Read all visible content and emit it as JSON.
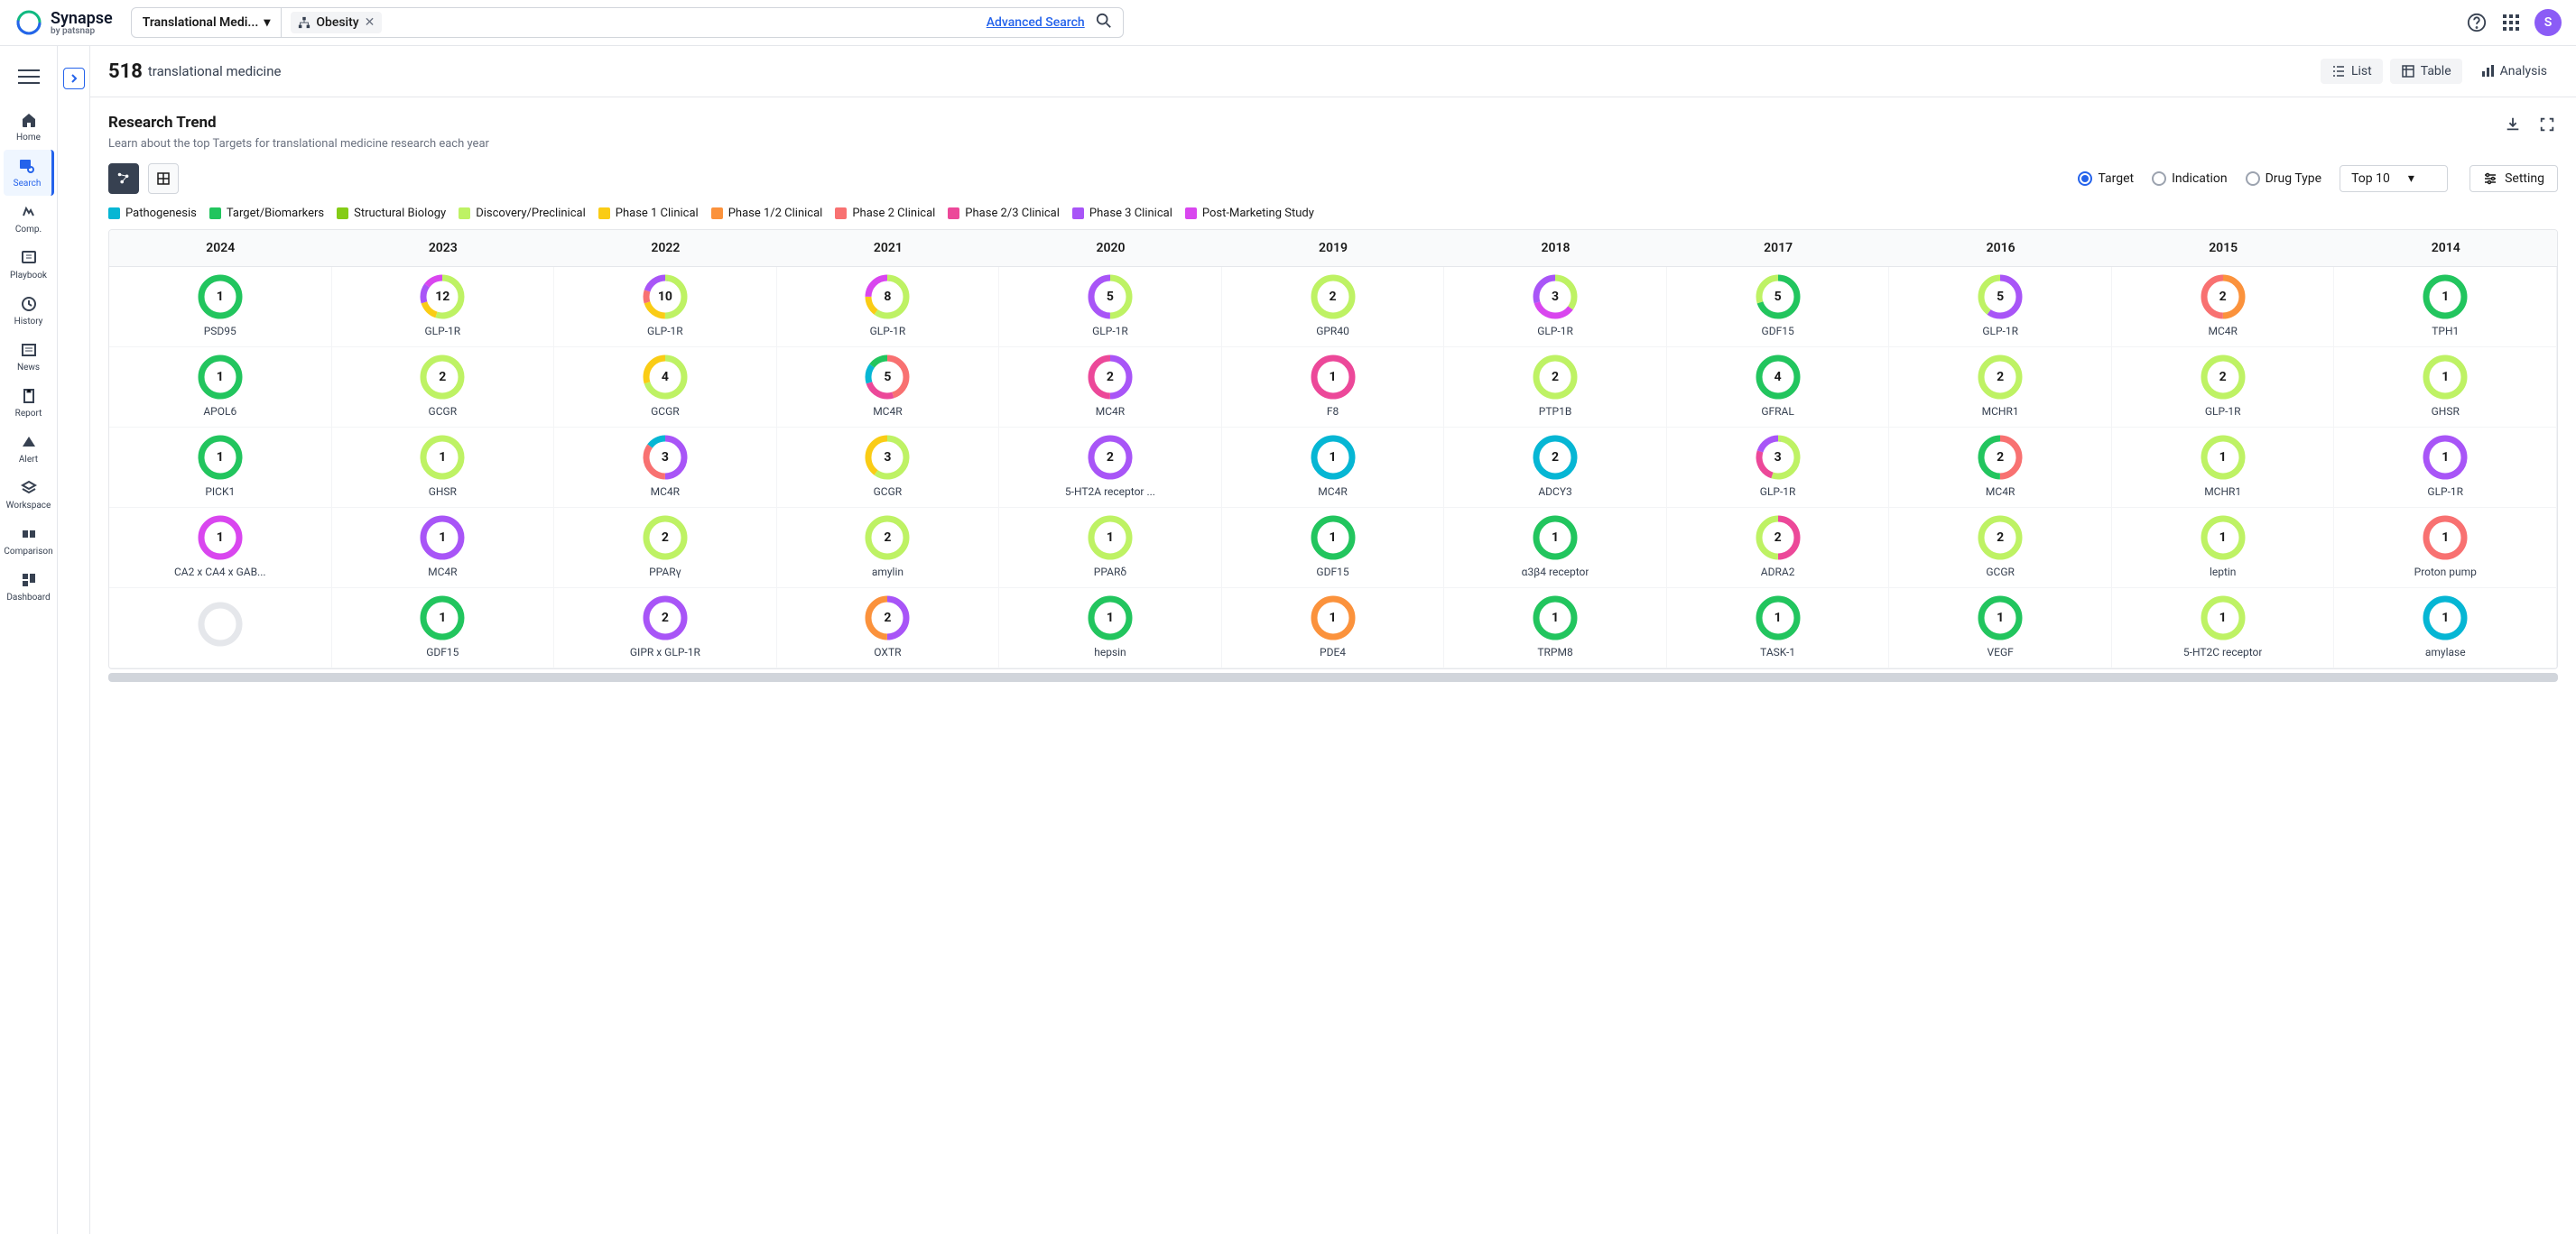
{
  "brand": {
    "name": "Synapse",
    "by": "by patsnap"
  },
  "search": {
    "dropdown": "Translational Medi...",
    "chip_label": "Obesity",
    "advanced": "Advanced Search"
  },
  "avatar_letter": "S",
  "sidebar": {
    "items": [
      {
        "label": "Home"
      },
      {
        "label": "Search",
        "active": true
      },
      {
        "label": "Comp."
      },
      {
        "label": "Playbook"
      },
      {
        "label": "History"
      },
      {
        "label": "News"
      },
      {
        "label": "Report"
      },
      {
        "label": "Alert"
      },
      {
        "label": "Workspace"
      },
      {
        "label": "Comparison"
      },
      {
        "label": "Dashboard"
      }
    ]
  },
  "results": {
    "count": "518",
    "label": "translational medicine"
  },
  "view_tabs": {
    "list": "List",
    "table": "Table",
    "analysis": "Analysis"
  },
  "panel": {
    "title": "Research Trend",
    "subtitle": "Learn about the top Targets for translational medicine research each year"
  },
  "radios": {
    "target": "Target",
    "indication": "Indication",
    "drug_type": "Drug Type"
  },
  "top_select": "Top 10",
  "setting_btn": "Setting",
  "legend": [
    {
      "label": "Pathogenesis",
      "color": "#06b6d4"
    },
    {
      "label": "Target/Biomarkers",
      "color": "#22c55e"
    },
    {
      "label": "Structural Biology",
      "color": "#84cc16"
    },
    {
      "label": "Discovery/Preclinical",
      "color": "#bef264"
    },
    {
      "label": "Phase 1 Clinical",
      "color": "#facc15"
    },
    {
      "label": "Phase 1/2 Clinical",
      "color": "#fb923c"
    },
    {
      "label": "Phase 2 Clinical",
      "color": "#f87171"
    },
    {
      "label": "Phase 2/3 Clinical",
      "color": "#ec4899"
    },
    {
      "label": "Phase 3 Clinical",
      "color": "#a855f7"
    },
    {
      "label": "Post-Marketing Study",
      "color": "#d946ef"
    }
  ],
  "years": [
    "2024",
    "2023",
    "2022",
    "2021",
    "2020",
    "2019",
    "2018",
    "2017",
    "2016",
    "2015",
    "2014"
  ],
  "rows": [
    [
      {
        "value": "1",
        "label": "PSD95",
        "segments": [
          [
            "#22c55e",
            100
          ]
        ]
      },
      {
        "value": "12",
        "label": "GLP-1R",
        "segments": [
          [
            "#bef264",
            55
          ],
          [
            "#facc15",
            15
          ],
          [
            "#a855f7",
            15
          ],
          [
            "#d946ef",
            15
          ]
        ]
      },
      {
        "value": "10",
        "label": "GLP-1R",
        "segments": [
          [
            "#bef264",
            50
          ],
          [
            "#facc15",
            20
          ],
          [
            "#f87171",
            10
          ],
          [
            "#a855f7",
            20
          ]
        ]
      },
      {
        "value": "8",
        "label": "GLP-1R",
        "segments": [
          [
            "#bef264",
            60
          ],
          [
            "#facc15",
            15
          ],
          [
            "#d946ef",
            25
          ]
        ]
      },
      {
        "value": "5",
        "label": "GLP-1R",
        "segments": [
          [
            "#bef264",
            50
          ],
          [
            "#a855f7",
            50
          ]
        ]
      },
      {
        "value": "2",
        "label": "GPR40",
        "segments": [
          [
            "#bef264",
            100
          ]
        ]
      },
      {
        "value": "3",
        "label": "GLP-1R",
        "segments": [
          [
            "#bef264",
            35
          ],
          [
            "#d946ef",
            35
          ],
          [
            "#a855f7",
            30
          ]
        ]
      },
      {
        "value": "5",
        "label": "GDF15",
        "segments": [
          [
            "#22c55e",
            70
          ],
          [
            "#bef264",
            30
          ]
        ]
      },
      {
        "value": "5",
        "label": "GLP-1R",
        "segments": [
          [
            "#a855f7",
            60
          ],
          [
            "#bef264",
            40
          ]
        ]
      },
      {
        "value": "2",
        "label": "MC4R",
        "segments": [
          [
            "#fb923c",
            50
          ],
          [
            "#f87171",
            50
          ]
        ]
      },
      {
        "value": "1",
        "label": "TPH1",
        "segments": [
          [
            "#22c55e",
            100
          ]
        ]
      }
    ],
    [
      {
        "value": "1",
        "label": "APOL6",
        "segments": [
          [
            "#22c55e",
            100
          ]
        ]
      },
      {
        "value": "2",
        "label": "GCGR",
        "segments": [
          [
            "#bef264",
            100
          ]
        ]
      },
      {
        "value": "4",
        "label": "GCGR",
        "segments": [
          [
            "#bef264",
            70
          ],
          [
            "#facc15",
            30
          ]
        ]
      },
      {
        "value": "5",
        "label": "MC4R",
        "segments": [
          [
            "#f87171",
            45
          ],
          [
            "#ec4899",
            25
          ],
          [
            "#06b6d4",
            15
          ],
          [
            "#22c55e",
            15
          ]
        ]
      },
      {
        "value": "2",
        "label": "MC4R",
        "segments": [
          [
            "#a855f7",
            50
          ],
          [
            "#ec4899",
            50
          ]
        ]
      },
      {
        "value": "1",
        "label": "F8",
        "segments": [
          [
            "#ec4899",
            100
          ]
        ]
      },
      {
        "value": "2",
        "label": "PTP1B",
        "segments": [
          [
            "#bef264",
            100
          ]
        ]
      },
      {
        "value": "4",
        "label": "GFRAL",
        "segments": [
          [
            "#22c55e",
            100
          ]
        ]
      },
      {
        "value": "2",
        "label": "MCHR1",
        "segments": [
          [
            "#bef264",
            100
          ]
        ]
      },
      {
        "value": "2",
        "label": "GLP-1R",
        "segments": [
          [
            "#bef264",
            100
          ]
        ]
      },
      {
        "value": "1",
        "label": "GHSR",
        "segments": [
          [
            "#bef264",
            100
          ]
        ]
      }
    ],
    [
      {
        "value": "1",
        "label": "PICK1",
        "segments": [
          [
            "#22c55e",
            100
          ]
        ]
      },
      {
        "value": "1",
        "label": "GHSR",
        "segments": [
          [
            "#bef264",
            100
          ]
        ]
      },
      {
        "value": "3",
        "label": "MC4R",
        "segments": [
          [
            "#a855f7",
            50
          ],
          [
            "#f87171",
            35
          ],
          [
            "#06b6d4",
            15
          ]
        ]
      },
      {
        "value": "3",
        "label": "GCGR",
        "segments": [
          [
            "#bef264",
            60
          ],
          [
            "#facc15",
            40
          ]
        ]
      },
      {
        "value": "2",
        "label": "5-HT2A receptor ...",
        "segments": [
          [
            "#a855f7",
            100
          ]
        ]
      },
      {
        "value": "1",
        "label": "MC4R",
        "segments": [
          [
            "#06b6d4",
            100
          ]
        ]
      },
      {
        "value": "2",
        "label": "ADCY3",
        "segments": [
          [
            "#06b6d4",
            100
          ]
        ]
      },
      {
        "value": "3",
        "label": "GLP-1R",
        "segments": [
          [
            "#bef264",
            55
          ],
          [
            "#ec4899",
            25
          ],
          [
            "#a855f7",
            20
          ]
        ]
      },
      {
        "value": "2",
        "label": "MC4R",
        "segments": [
          [
            "#f87171",
            50
          ],
          [
            "#22c55e",
            50
          ]
        ]
      },
      {
        "value": "1",
        "label": "MCHR1",
        "segments": [
          [
            "#bef264",
            100
          ]
        ]
      },
      {
        "value": "1",
        "label": "GLP-1R",
        "segments": [
          [
            "#a855f7",
            100
          ]
        ]
      }
    ],
    [
      {
        "value": "1",
        "label": "CA2 x CA4 x GAB...",
        "segments": [
          [
            "#d946ef",
            100
          ]
        ]
      },
      {
        "value": "1",
        "label": "MC4R",
        "segments": [
          [
            "#a855f7",
            100
          ]
        ]
      },
      {
        "value": "2",
        "label": "PPARγ",
        "segments": [
          [
            "#bef264",
            100
          ]
        ]
      },
      {
        "value": "2",
        "label": "amylin",
        "segments": [
          [
            "#bef264",
            100
          ]
        ]
      },
      {
        "value": "1",
        "label": "PPARδ",
        "segments": [
          [
            "#bef264",
            100
          ]
        ]
      },
      {
        "value": "1",
        "label": "GDF15",
        "segments": [
          [
            "#22c55e",
            100
          ]
        ]
      },
      {
        "value": "1",
        "label": "α3β4 receptor",
        "segments": [
          [
            "#22c55e",
            100
          ]
        ]
      },
      {
        "value": "2",
        "label": "ADRA2",
        "segments": [
          [
            "#ec4899",
            50
          ],
          [
            "#bef264",
            50
          ]
        ]
      },
      {
        "value": "2",
        "label": "GCGR",
        "segments": [
          [
            "#bef264",
            100
          ]
        ]
      },
      {
        "value": "1",
        "label": "leptin",
        "segments": [
          [
            "#bef264",
            100
          ]
        ]
      },
      {
        "value": "1",
        "label": "Proton pump",
        "segments": [
          [
            "#f87171",
            100
          ]
        ]
      }
    ],
    [
      {
        "value": "",
        "label": "",
        "segments": [
          [
            "#e5e7eb",
            100
          ]
        ]
      },
      {
        "value": "1",
        "label": "GDF15",
        "segments": [
          [
            "#22c55e",
            100
          ]
        ]
      },
      {
        "value": "2",
        "label": "GIPR x GLP-1R",
        "segments": [
          [
            "#a855f7",
            100
          ]
        ]
      },
      {
        "value": "2",
        "label": "OXTR",
        "segments": [
          [
            "#a855f7",
            50
          ],
          [
            "#fb923c",
            50
          ]
        ]
      },
      {
        "value": "1",
        "label": "hepsin",
        "segments": [
          [
            "#22c55e",
            100
          ]
        ]
      },
      {
        "value": "1",
        "label": "PDE4",
        "segments": [
          [
            "#fb923c",
            100
          ]
        ]
      },
      {
        "value": "1",
        "label": "TRPM8",
        "segments": [
          [
            "#22c55e",
            100
          ]
        ]
      },
      {
        "value": "1",
        "label": "TASK-1",
        "segments": [
          [
            "#22c55e",
            100
          ]
        ]
      },
      {
        "value": "1",
        "label": "VEGF",
        "segments": [
          [
            "#22c55e",
            100
          ]
        ]
      },
      {
        "value": "1",
        "label": "5-HT2C receptor",
        "segments": [
          [
            "#bef264",
            100
          ]
        ]
      },
      {
        "value": "1",
        "label": "amylase",
        "segments": [
          [
            "#06b6d4",
            100
          ]
        ]
      }
    ]
  ]
}
